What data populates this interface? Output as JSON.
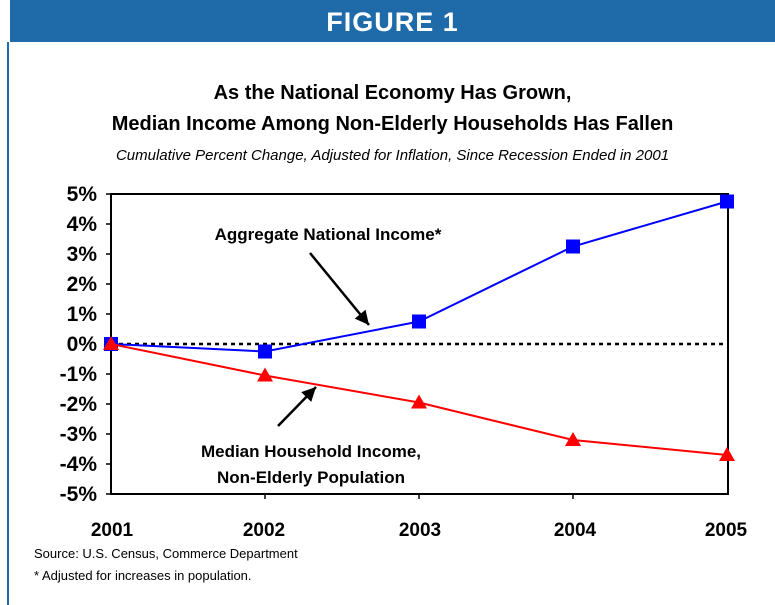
{
  "header": {
    "figure_label": "FIGURE 1"
  },
  "colors": {
    "banner": "#1f6aa8",
    "aggregate": "#0000ff",
    "median": "#ff0000",
    "text": "#000000"
  },
  "chart_data": {
    "type": "line",
    "title": "As the National Economy Has Grown,",
    "title_line2": "Median Income Among Non-Elderly Households Has Fallen",
    "subtitle": "Cumulative Percent Change, Adjusted for Inflation, Since Recession Ended in 2001",
    "xlabel": "",
    "ylabel": "",
    "categories": [
      "2001",
      "2002",
      "2003",
      "2004",
      "2005"
    ],
    "ylim": [
      -5,
      5
    ],
    "yticks": [
      "5%",
      "4%",
      "3%",
      "2%",
      "1%",
      "0%",
      "-1%",
      "-2%",
      "-3%",
      "-4%",
      "-5%"
    ],
    "zero_line": "dotted",
    "grid": false,
    "series": [
      {
        "name": "Aggregate National Income*",
        "marker": "square",
        "color": "#0000ff",
        "values": [
          0,
          -0.25,
          0.75,
          3.25,
          4.75
        ]
      },
      {
        "name": "Median Household Income,",
        "name_line2": "Non-Elderly Population",
        "marker": "triangle",
        "color": "#ff0000",
        "values": [
          0,
          -1.05,
          -1.95,
          -3.2,
          -3.7
        ]
      }
    ]
  },
  "notes": {
    "source": "Source:  U.S. Census, Commerce Department",
    "footnote": "* Adjusted for increases in population."
  }
}
